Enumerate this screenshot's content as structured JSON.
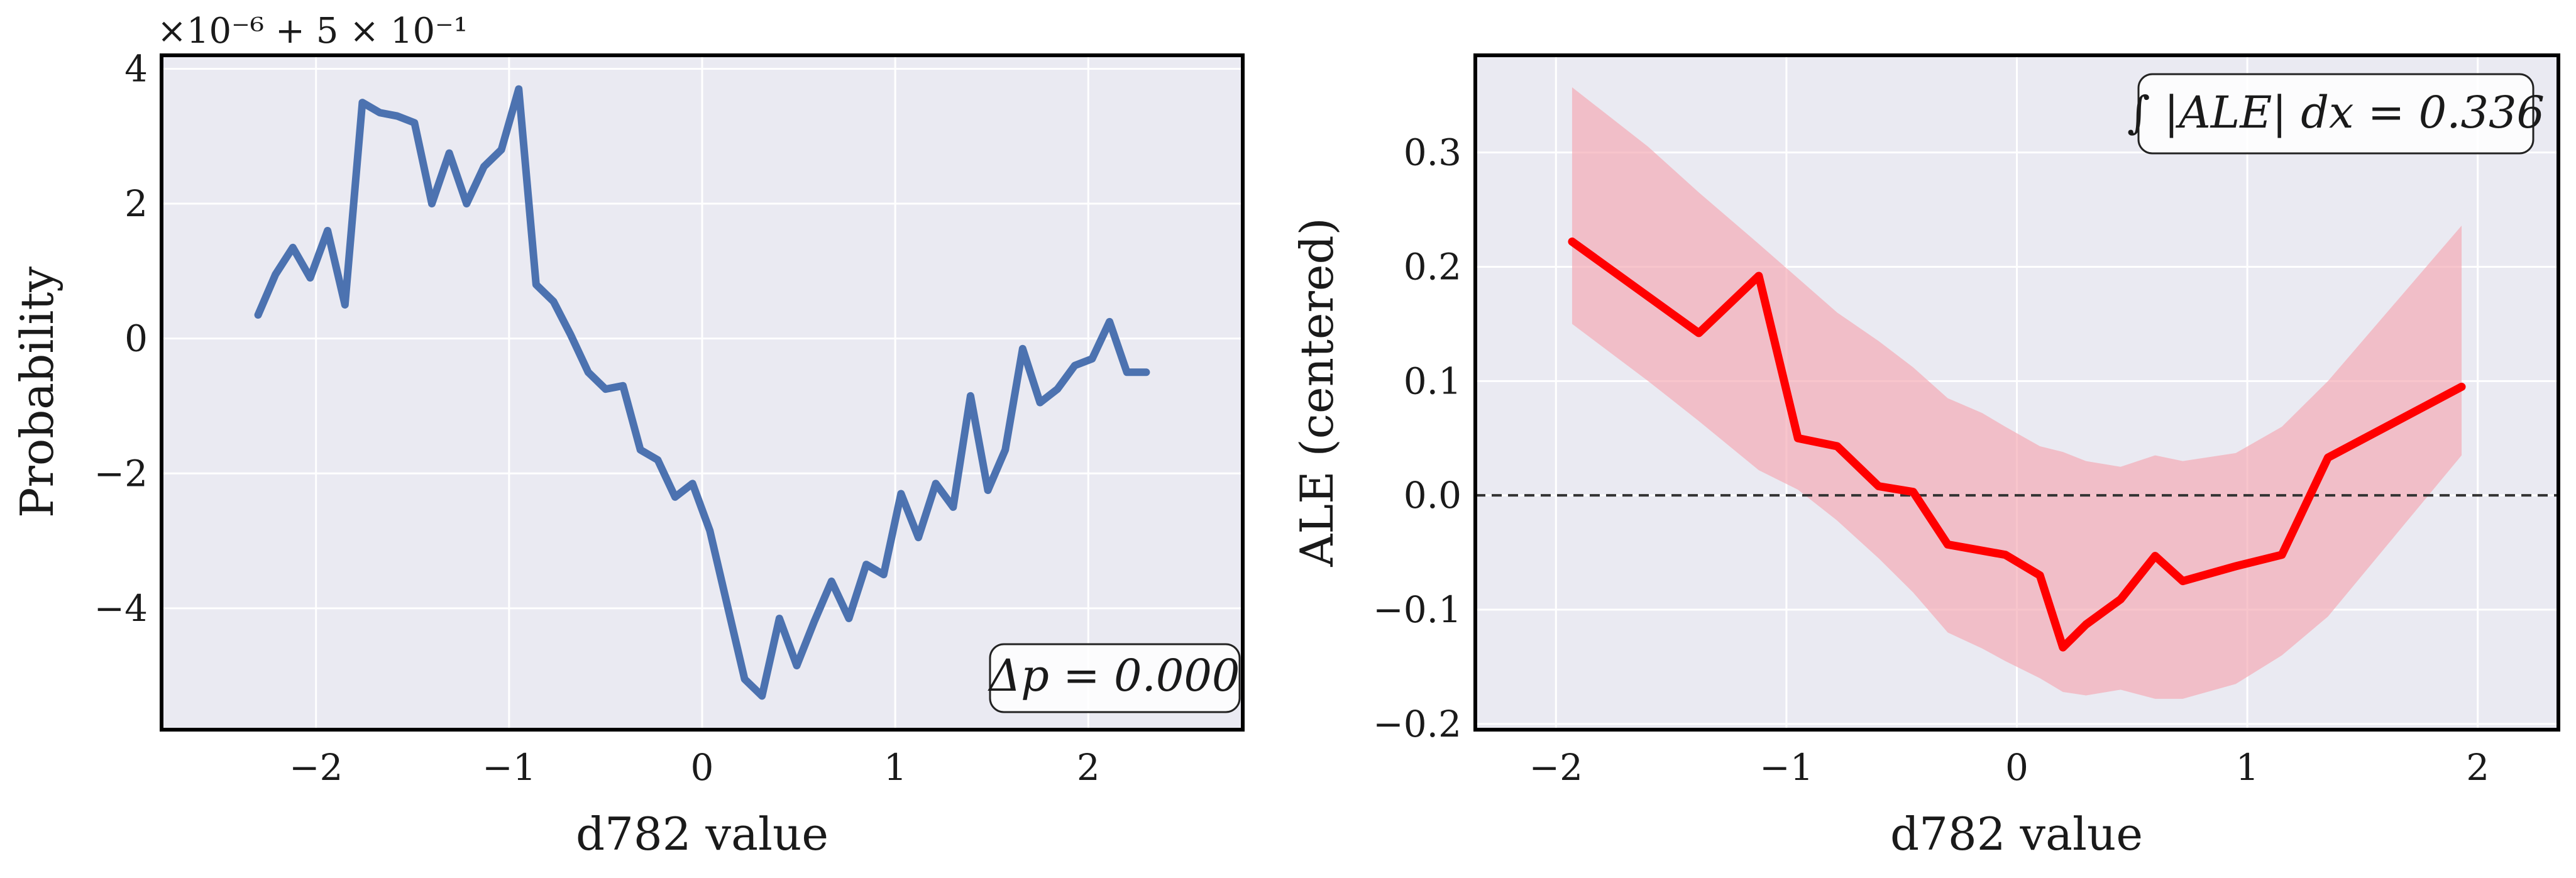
{
  "colors": {
    "panel_bg": "#eaeaf2",
    "grid": "#ffffff",
    "left_line": "#4c72b0",
    "right_line": "#ff0000",
    "band": "#f4a6b0",
    "zero_line": "#333333",
    "frame": "#000000"
  },
  "chart_data": [
    {
      "type": "line",
      "title": "",
      "xlabel": "d782 value",
      "ylabel": "Probability",
      "offset_text": "×10⁻⁶ + 5 × 10⁻¹",
      "annotation": "Δp = 0.000",
      "xlim": [
        -2.8,
        2.8
      ],
      "ylim": [
        -5.8,
        4.2
      ],
      "xticks": [
        -2,
        -1,
        0,
        1,
        2
      ],
      "xtick_labels": [
        "−2",
        "−1",
        "0",
        "1",
        "2"
      ],
      "yticks": [
        -4,
        -2,
        0,
        2,
        4
      ],
      "ytick_labels": [
        "−4",
        "−2",
        "0",
        "2",
        "4"
      ],
      "grid": true,
      "series": [
        {
          "x": [
            -2.3,
            -2.21,
            -2.12,
            -2.03,
            -1.94,
            -1.85,
            -1.76,
            -1.67,
            -1.58,
            -1.49,
            -1.4,
            -1.31,
            -1.22,
            -1.13,
            -1.04,
            -0.95,
            -0.86,
            -0.77,
            -0.68,
            -0.59,
            -0.5,
            -0.41,
            -0.32,
            -0.23,
            -0.14,
            -0.05,
            0.04,
            0.13,
            0.22,
            0.31,
            0.4,
            0.49,
            0.58,
            0.67,
            0.76,
            0.85,
            0.94,
            1.03,
            1.12,
            1.21,
            1.3,
            1.39,
            1.48,
            1.57,
            1.66,
            1.75,
            1.84,
            1.93,
            2.02,
            2.11,
            2.2,
            2.3
          ],
          "y": [
            0.35,
            0.95,
            1.35,
            0.9,
            1.6,
            0.5,
            3.5,
            3.35,
            3.3,
            3.2,
            2.0,
            2.75,
            2.0,
            2.55,
            2.8,
            3.7,
            0.8,
            0.55,
            0.05,
            -0.5,
            -0.75,
            -0.7,
            -1.65,
            -1.8,
            -2.35,
            -2.15,
            -2.85,
            -3.95,
            -5.05,
            -5.3,
            -4.15,
            -4.85,
            -4.2,
            -3.6,
            -4.15,
            -3.35,
            -3.5,
            -2.3,
            -2.95,
            -2.15,
            -2.5,
            -0.85,
            -2.25,
            -1.65,
            -0.15,
            -0.95,
            -0.75,
            -0.4,
            -0.3,
            0.25,
            -0.5,
            -0.5
          ]
        }
      ]
    },
    {
      "type": "line",
      "title": "",
      "xlabel": "d782 value",
      "ylabel": "ALE (centered)",
      "annotation": "∫ |ALE| dx = 0.336",
      "xlim": [
        -2.35,
        2.35
      ],
      "ylim": [
        -0.205,
        0.385
      ],
      "xticks": [
        -2,
        -1,
        0,
        1,
        2
      ],
      "xtick_labels": [
        "−2",
        "−1",
        "0",
        "1",
        "2"
      ],
      "yticks": [
        -0.2,
        -0.1,
        0.0,
        0.1,
        0.2,
        0.3
      ],
      "ytick_labels": [
        "−0.2",
        "−0.1",
        "0.0",
        "0.1",
        "0.2",
        "0.3"
      ],
      "grid": true,
      "reference_line_y": 0.0,
      "series": [
        {
          "x": [
            -1.93,
            -1.38,
            -1.12,
            -0.95,
            -0.78,
            -0.6,
            -0.45,
            -0.3,
            -0.05,
            0.1,
            0.2,
            0.3,
            0.45,
            0.6,
            0.72,
            0.95,
            1.15,
            1.35,
            1.93
          ],
          "y": [
            0.222,
            0.142,
            0.192,
            0.05,
            0.043,
            0.008,
            0.003,
            -0.043,
            -0.052,
            -0.07,
            -0.133,
            -0.113,
            -0.091,
            -0.053,
            -0.075,
            -0.062,
            -0.052,
            0.033,
            0.095
          ]
        }
      ],
      "band": {
        "x": [
          -1.93,
          -1.6,
          -1.38,
          -1.12,
          -0.95,
          -0.78,
          -0.6,
          -0.45,
          -0.3,
          -0.15,
          -0.05,
          0.1,
          0.2,
          0.3,
          0.45,
          0.6,
          0.72,
          0.95,
          1.15,
          1.35,
          1.93
        ],
        "upper": [
          0.357,
          0.305,
          0.265,
          0.22,
          0.19,
          0.16,
          0.135,
          0.112,
          0.085,
          0.072,
          0.06,
          0.043,
          0.038,
          0.03,
          0.025,
          0.035,
          0.03,
          0.037,
          0.06,
          0.1,
          0.236
        ],
        "lower": [
          0.15,
          0.1,
          0.065,
          0.022,
          0.005,
          -0.022,
          -0.055,
          -0.085,
          -0.12,
          -0.134,
          -0.145,
          -0.16,
          -0.172,
          -0.175,
          -0.17,
          -0.178,
          -0.178,
          -0.165,
          -0.14,
          -0.106,
          0.035
        ]
      }
    }
  ]
}
